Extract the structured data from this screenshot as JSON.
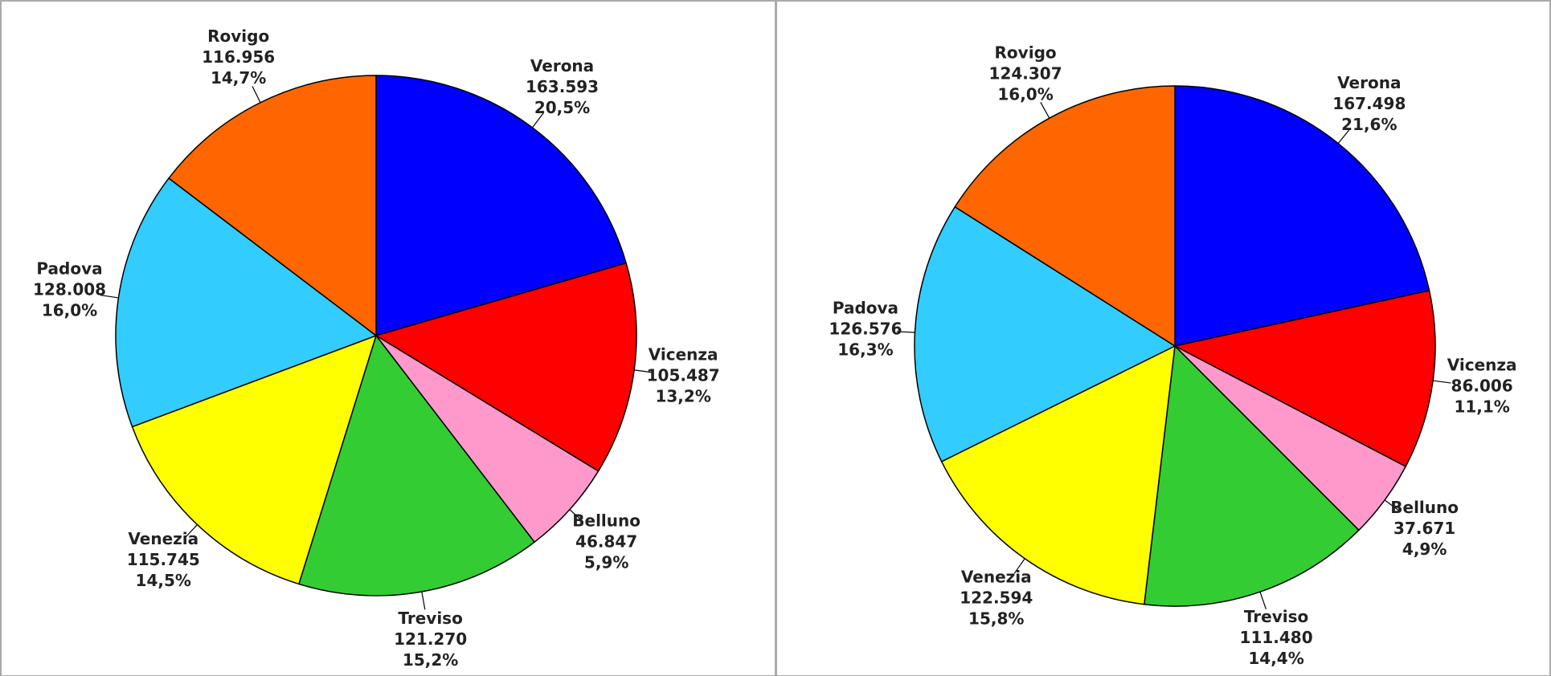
{
  "chart_data": [
    {
      "type": "pie",
      "categories": [
        "Verona",
        "Vicenza",
        "Belluno",
        "Treviso",
        "Venezia",
        "Padova",
        "Rovigo"
      ],
      "colors": [
        "#0000ff",
        "#ff0000",
        "#ff99cc",
        "#33cc33",
        "#ffff00",
        "#33ccff",
        "#ff6600"
      ],
      "values": [
        163593,
        105487,
        46847,
        121270,
        115745,
        128008,
        116956
      ],
      "value_labels": [
        "163.593",
        "105.487",
        "46.847",
        "121.270",
        "115.745",
        "128.008",
        "116.956"
      ],
      "percentages": [
        20.5,
        13.2,
        5.9,
        15.2,
        14.5,
        16.0,
        14.7
      ],
      "percentage_labels": [
        "20,5%",
        "13,2%",
        "5,9%",
        "15,2%",
        "14,5%",
        "16,0%",
        "14,7%"
      ]
    },
    {
      "type": "pie",
      "categories": [
        "Verona",
        "Vicenza",
        "Belluno",
        "Treviso",
        "Venezia",
        "Padova",
        "Rovigo"
      ],
      "colors": [
        "#0000ff",
        "#ff0000",
        "#ff99cc",
        "#33cc33",
        "#ffff00",
        "#33ccff",
        "#ff6600"
      ],
      "values": [
        167498,
        86006,
        37671,
        111480,
        122594,
        126576,
        124307
      ],
      "value_labels": [
        "167.498",
        "86.006",
        "37.671",
        "111.480",
        "122.594",
        "126.576",
        "124.307"
      ],
      "percentages": [
        21.6,
        11.1,
        4.9,
        14.4,
        15.8,
        16.3,
        16.0
      ],
      "percentage_labels": [
        "21,6%",
        "11,1%",
        "4,9%",
        "14,4%",
        "15,8%",
        "16,3%",
        "16,0%"
      ]
    }
  ]
}
